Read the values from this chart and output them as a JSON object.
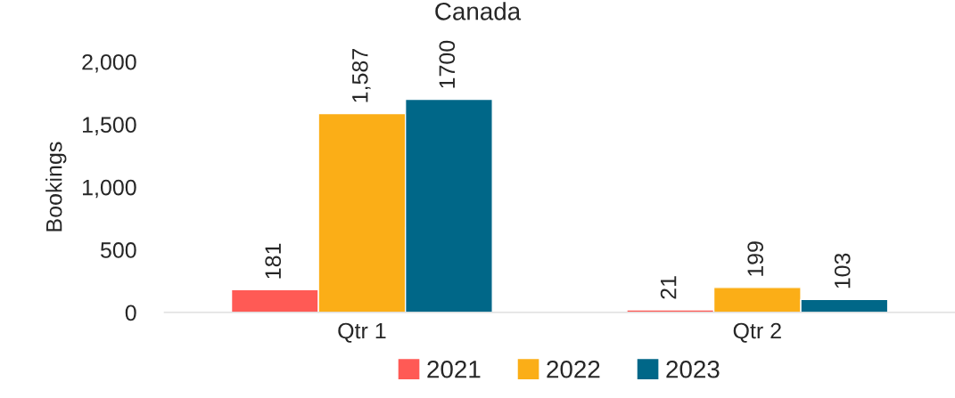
{
  "chart_data": {
    "type": "bar",
    "title": "Canada",
    "ylabel": "Bookings",
    "categories": [
      "Qtr 1",
      "Qtr 2"
    ],
    "series": [
      {
        "name": "2021",
        "color": "#ff5a55",
        "values": [
          181,
          21
        ],
        "value_labels": [
          "181",
          "21"
        ]
      },
      {
        "name": "2022",
        "color": "#fbae17",
        "values": [
          1587,
          199
        ],
        "value_labels": [
          "1,587",
          "199"
        ]
      },
      {
        "name": "2023",
        "color": "#006788",
        "values": [
          1700,
          103
        ],
        "value_labels": [
          "1700",
          "103"
        ]
      }
    ],
    "ylim": [
      0,
      2000
    ],
    "yticks": [
      0,
      500,
      {
        "value": 1000,
        "label": "1,000"
      },
      {
        "value": 1500,
        "label": "1,500"
      },
      {
        "value": 2000,
        "label": "2,000"
      }
    ],
    "grid": false,
    "legend": "bottom"
  }
}
